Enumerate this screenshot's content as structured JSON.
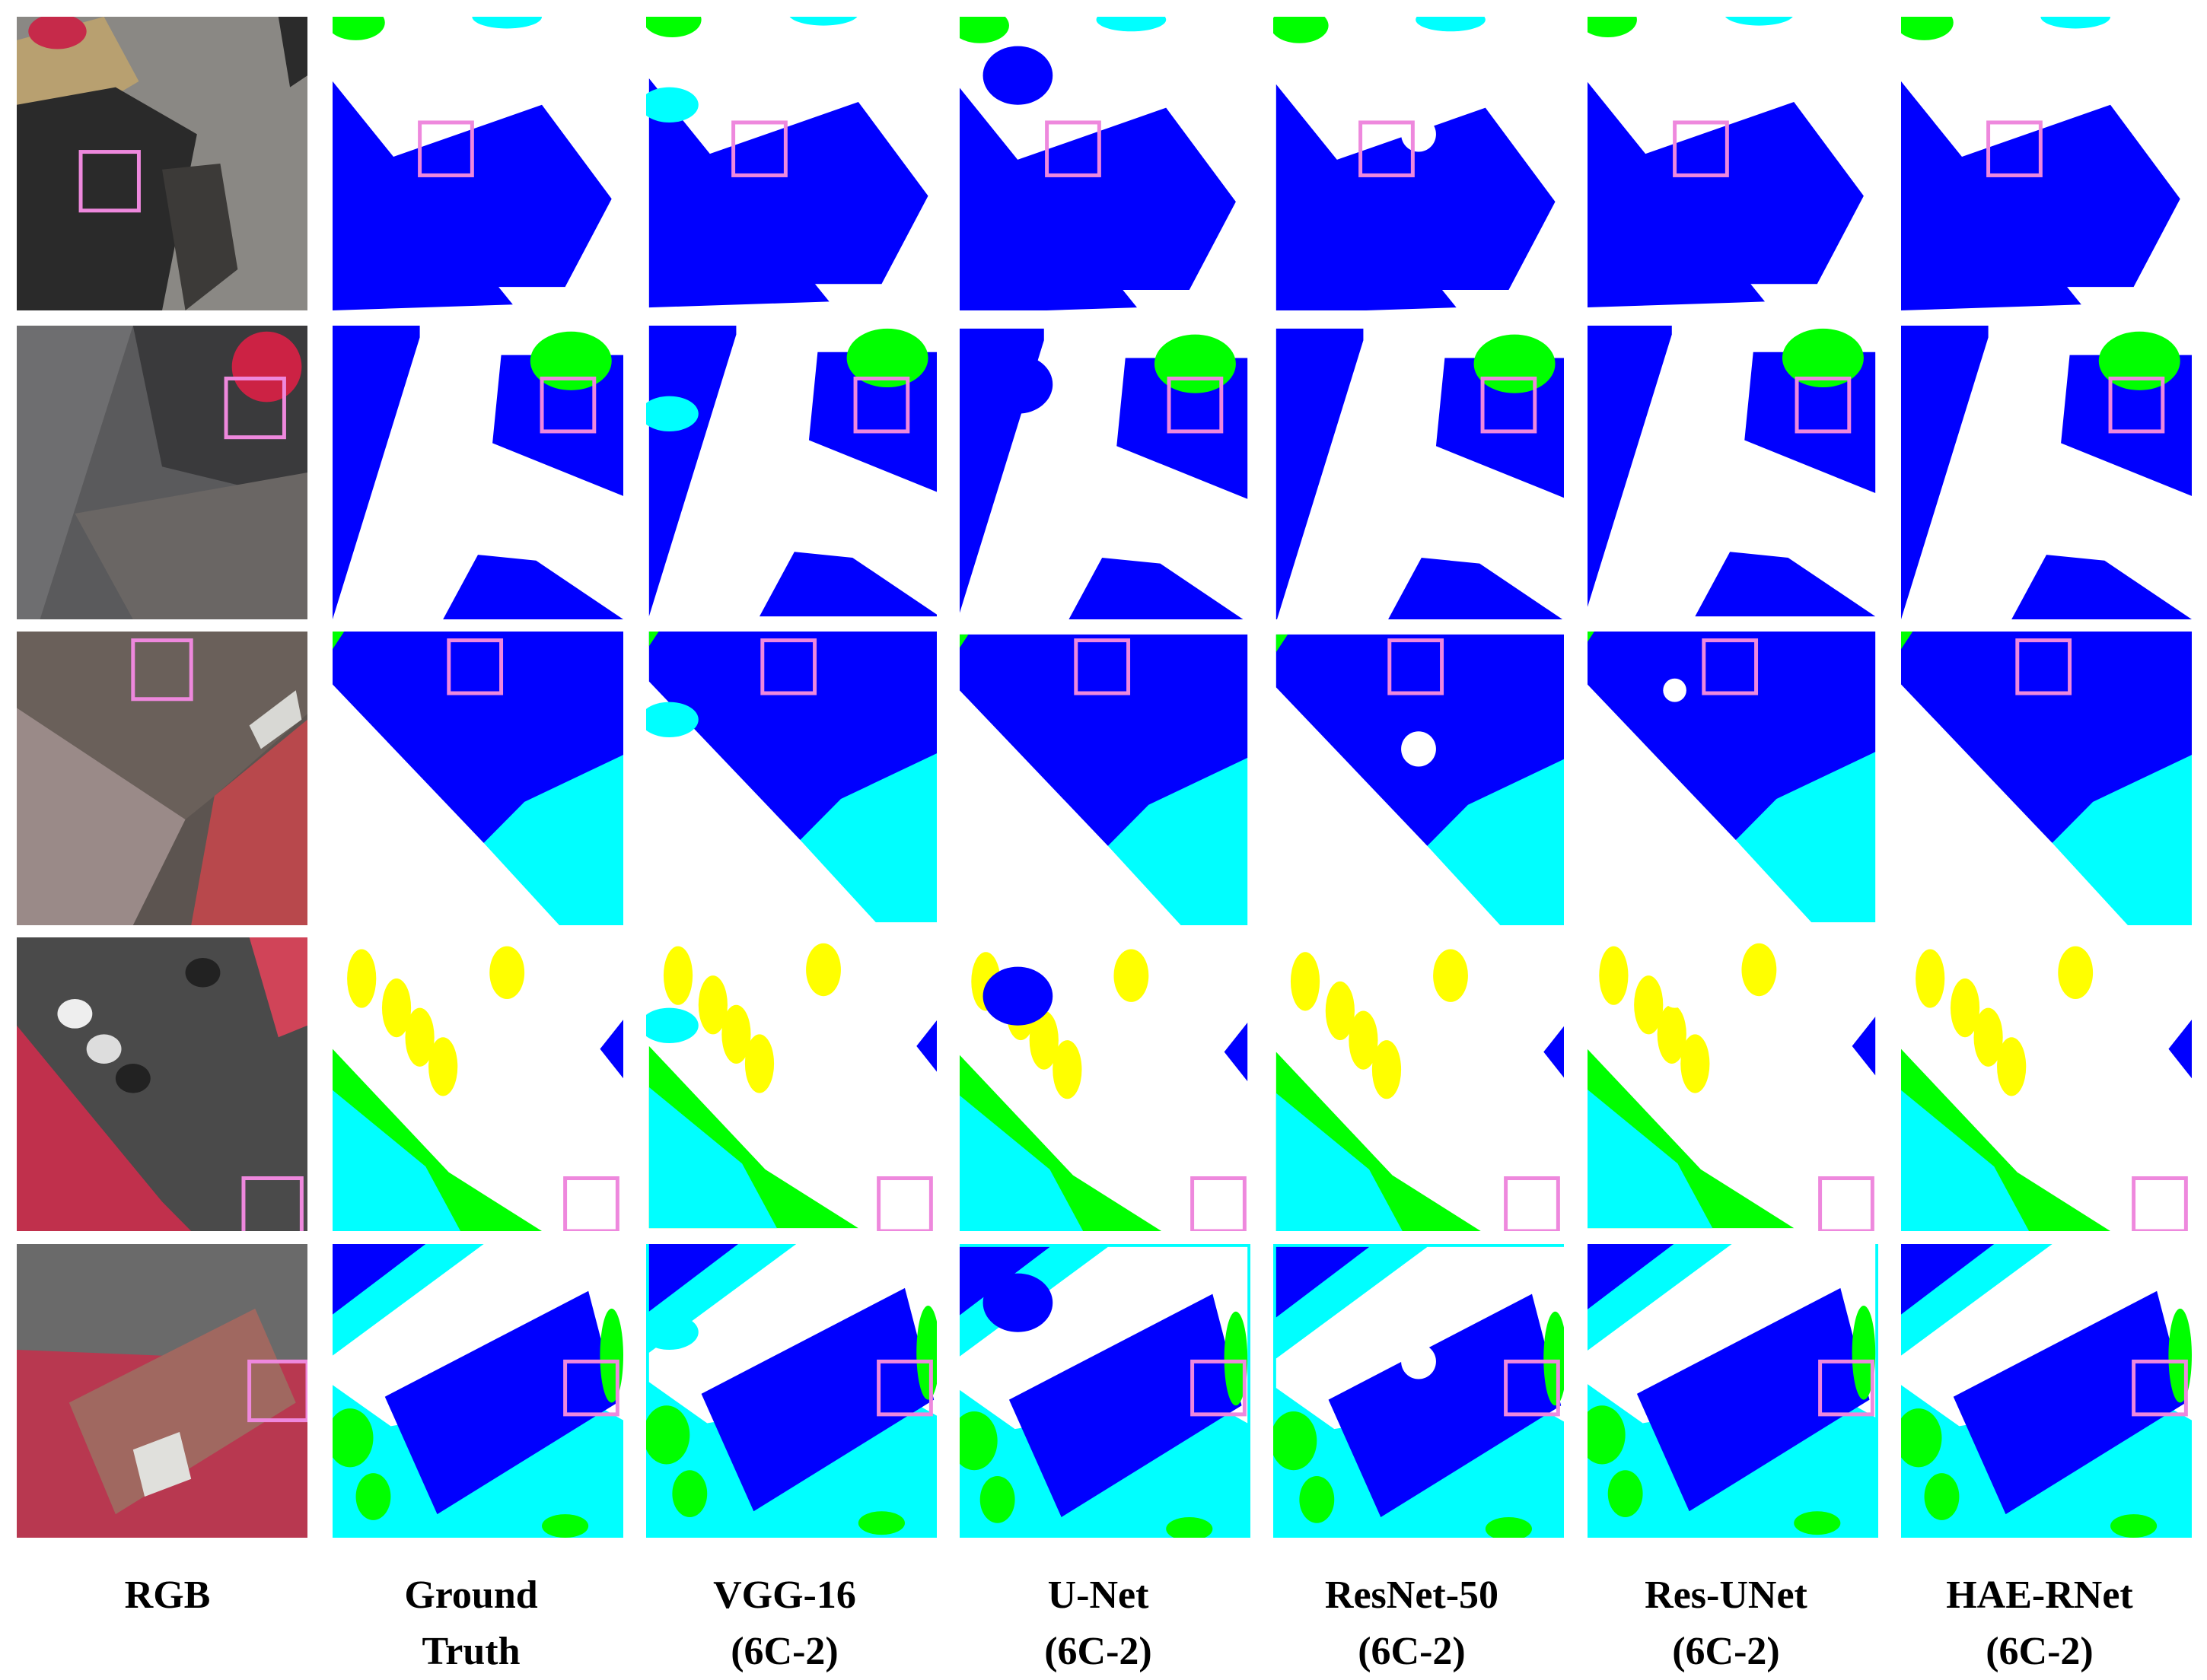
{
  "figure": {
    "columns": [
      {
        "id": "rgb",
        "line1": "RGB",
        "line2": ""
      },
      {
        "id": "gt",
        "line1": "Ground",
        "line2": "Truth"
      },
      {
        "id": "vgg",
        "line1": "VGG-16",
        "line2": "(6C-2)"
      },
      {
        "id": "unet",
        "line1": "U-Net",
        "line2": "(6C-2)"
      },
      {
        "id": "resnet",
        "line1": "ResNet-50",
        "line2": "(6C-2)"
      },
      {
        "id": "resunet",
        "line1": "Res-UNet",
        "line2": "(6C-2)"
      },
      {
        "id": "haernet",
        "line1": "HAE-RNet",
        "line2": "(6C-2)"
      }
    ],
    "rows": 5,
    "class_colors": {
      "impervious": "#ffffff",
      "building": "#0000ff",
      "low_vegetation": "#00ffff",
      "tree": "#00ff00",
      "car": "#ffff00"
    },
    "highlight_box_color": "#ee88dd"
  }
}
